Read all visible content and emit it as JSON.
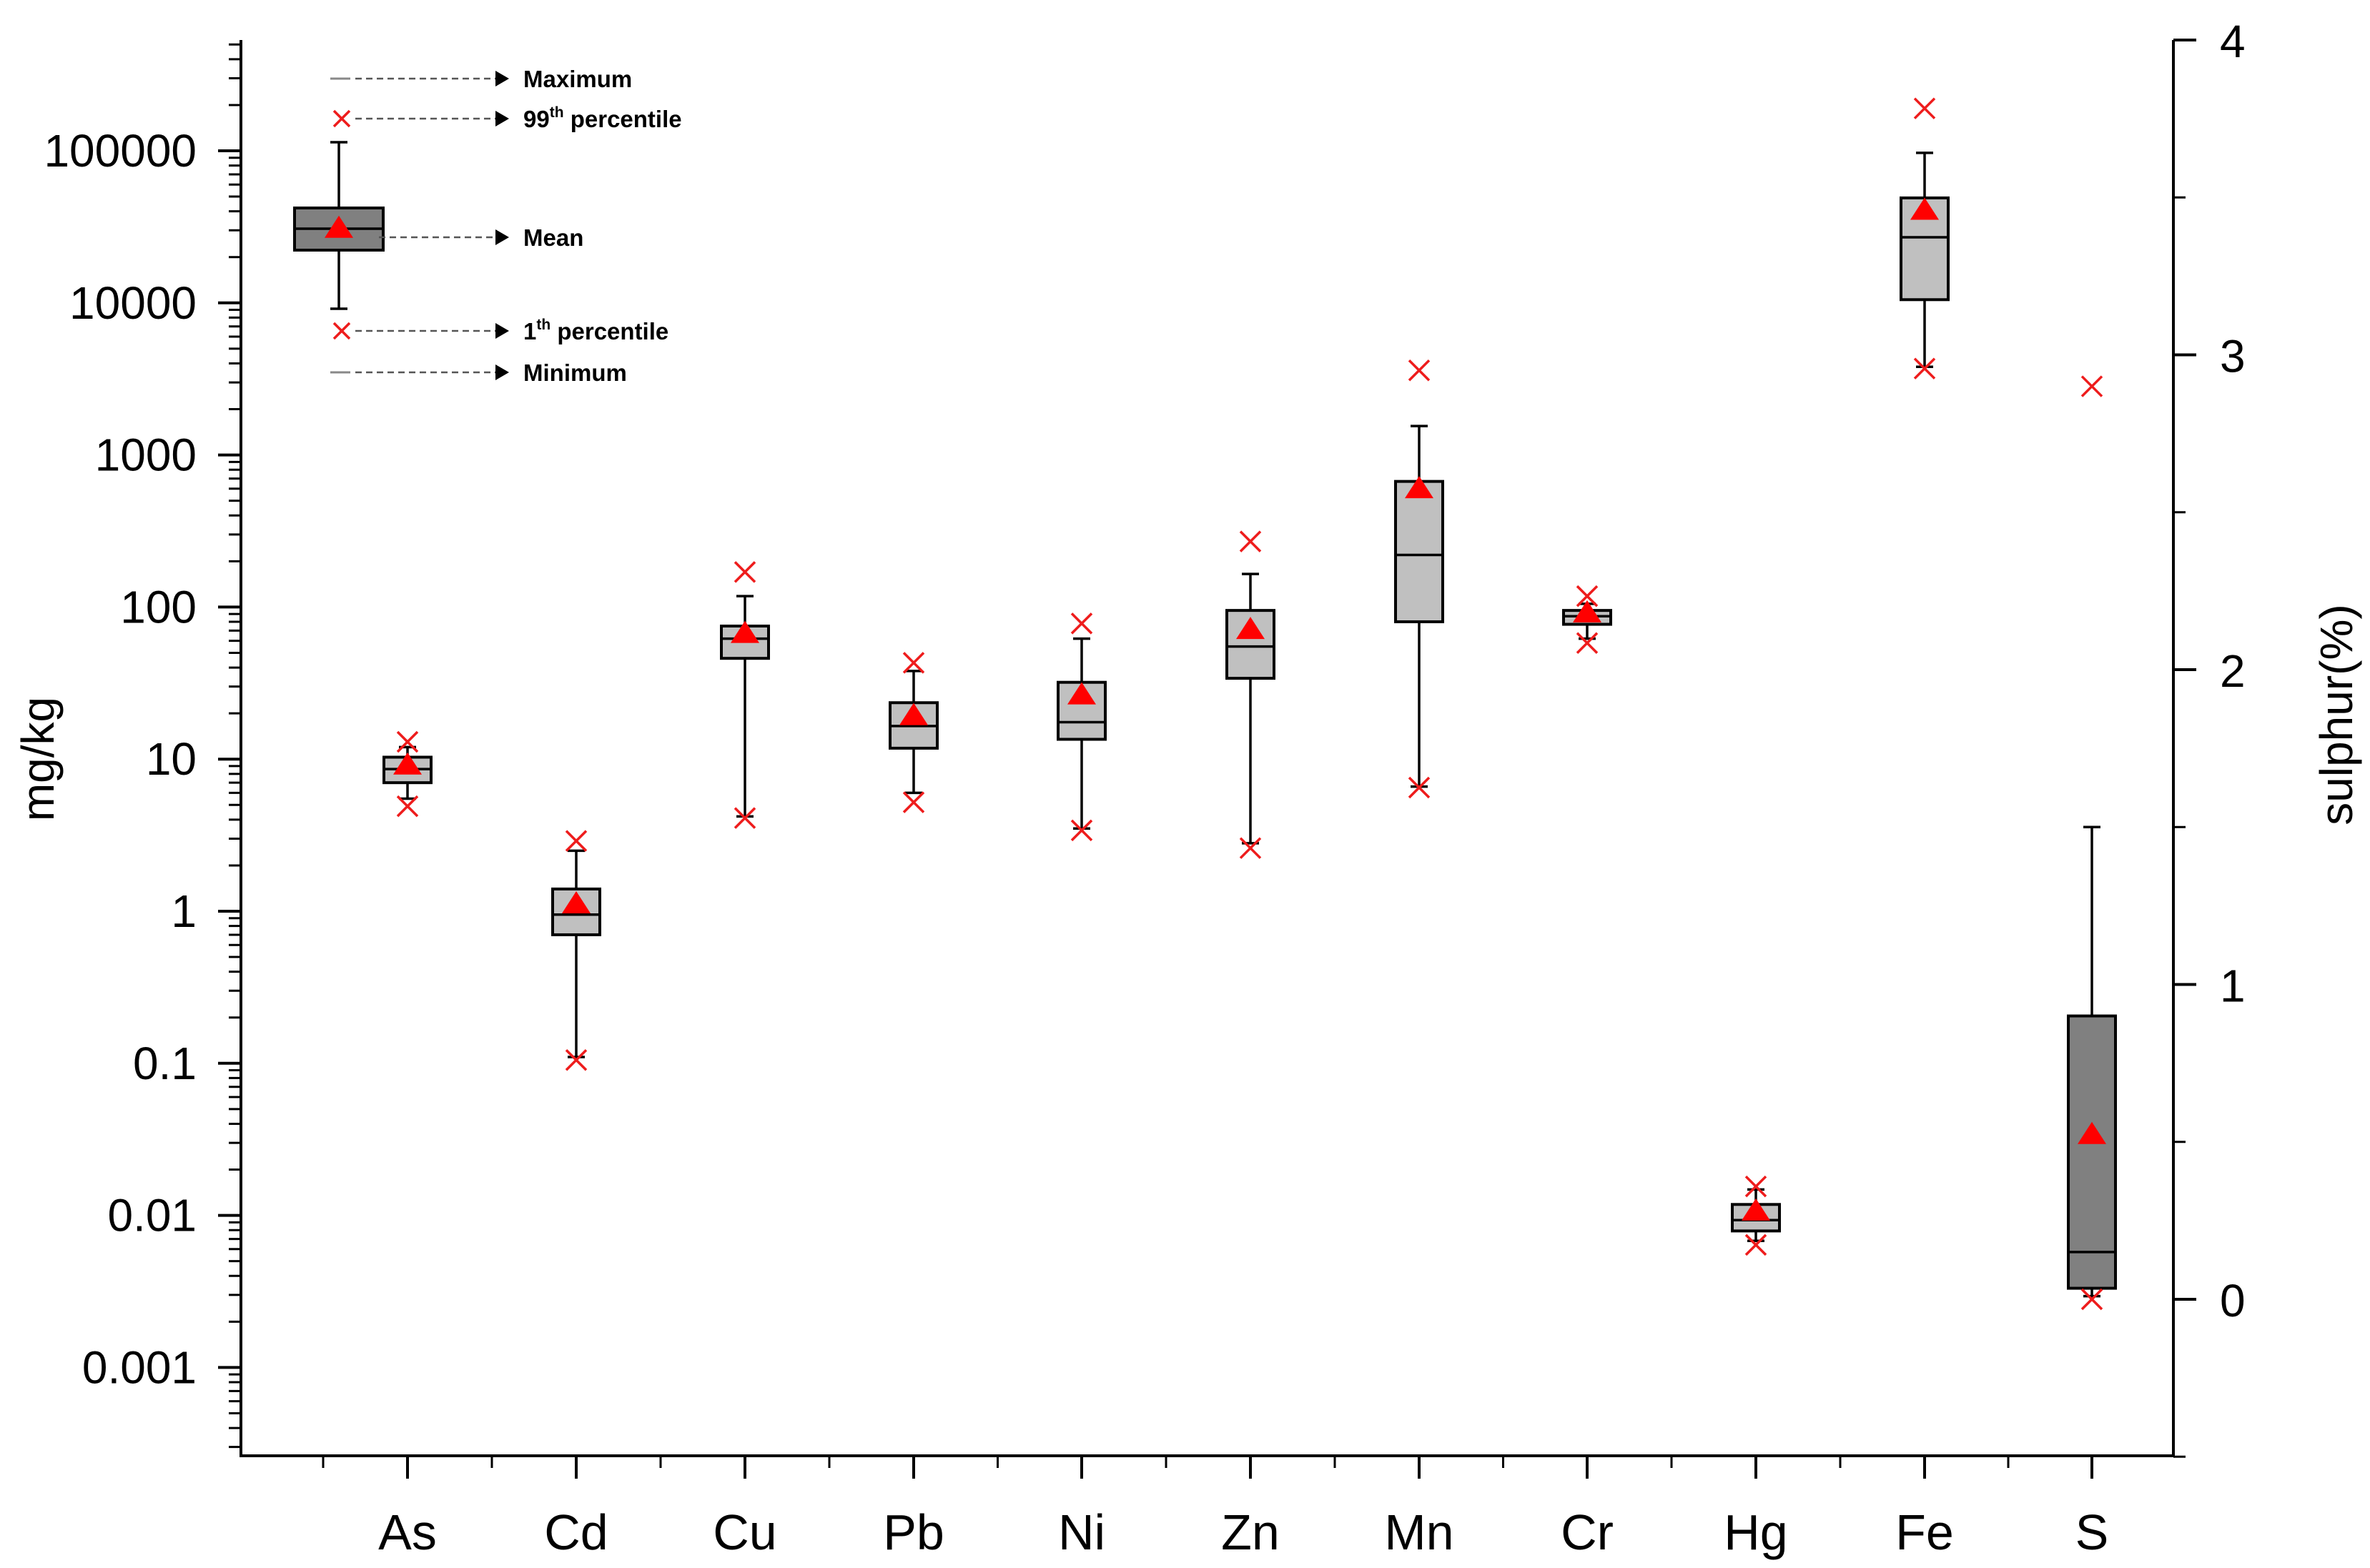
{
  "chart_data": {
    "type": "box",
    "title": "",
    "xlabel": "",
    "ylabel": "mg/kg",
    "y2label": "sulphur(%)",
    "yscale": "log",
    "ylim": [
      0.0002,
      500000
    ],
    "y2lim": [
      -0.5,
      4
    ],
    "yticks": [
      0.001,
      0.01,
      0.1,
      1,
      10,
      100,
      1000,
      10000,
      100000
    ],
    "ytick_labels": [
      "0.001",
      "0.01",
      "0.1",
      "1",
      "10",
      "100",
      "1000",
      "10000",
      "100000"
    ],
    "y2ticks": [
      0,
      1,
      2,
      3,
      4
    ],
    "y2tick_labels": [
      "0",
      "1",
      "2",
      "3",
      "4"
    ],
    "categories": [
      "As",
      "Cd",
      "Cu",
      "Pb",
      "Ni",
      "Zn",
      "Mn",
      "Cr",
      "Hg",
      "Fe",
      "S"
    ],
    "series": [
      {
        "name": "As",
        "axis": "left",
        "min": 5.5,
        "p1": 4.9,
        "q1": 7.0,
        "median": 8.6,
        "q3": 10.3,
        "max": 12.0,
        "p99": 13.0,
        "mean": 9.0
      },
      {
        "name": "Cd",
        "axis": "left",
        "min": 0.11,
        "p1": 0.105,
        "q1": 0.7,
        "median": 0.95,
        "q3": 1.4,
        "max": 2.5,
        "p99": 2.9,
        "mean": 1.1
      },
      {
        "name": "Cu",
        "axis": "left",
        "min": 4.2,
        "p1": 4.1,
        "q1": 46,
        "median": 62,
        "q3": 75,
        "max": 118,
        "p99": 170,
        "mean": 66
      },
      {
        "name": "Pb",
        "axis": "left",
        "min": 6.0,
        "p1": 5.2,
        "q1": 11.8,
        "median": 16.5,
        "q3": 23.5,
        "max": 38,
        "p99": 43,
        "mean": 19
      },
      {
        "name": "Ni",
        "axis": "left",
        "min": 3.5,
        "p1": 3.4,
        "q1": 13.5,
        "median": 17.5,
        "q3": 32,
        "max": 62,
        "p99": 78,
        "mean": 26
      },
      {
        "name": "Zn",
        "axis": "left",
        "min": 2.8,
        "p1": 2.6,
        "q1": 34,
        "median": 55,
        "q3": 95,
        "max": 165,
        "p99": 270,
        "mean": 70
      },
      {
        "name": "Mn",
        "axis": "left",
        "min": 6.6,
        "p1": 6.5,
        "q1": 80,
        "median": 220,
        "q3": 670,
        "max": 1550,
        "p99": 3600,
        "mean": 590
      },
      {
        "name": "Cr",
        "axis": "left",
        "min": 62,
        "p1": 58,
        "q1": 77,
        "median": 87,
        "q3": 95,
        "max": 105,
        "p99": 118,
        "mean": 90
      },
      {
        "name": "Hg",
        "axis": "left",
        "min": 0.0068,
        "p1": 0.0064,
        "q1": 0.0079,
        "median": 0.0093,
        "q3": 0.0118,
        "max": 0.0148,
        "p99": 0.0155,
        "mean": 0.0105
      },
      {
        "name": "Fe",
        "axis": "left",
        "min": 3800,
        "p1": 3700,
        "q1": 10500,
        "median": 27000,
        "q3": 49000,
        "max": 97000,
        "p99": 190000,
        "mean": 40000
      },
      {
        "name": "S",
        "axis": "right",
        "min": 0.01,
        "p1": 0.0,
        "q1": 0.035,
        "median": 0.15,
        "q3": 0.9,
        "max": 1.5,
        "p99": 2.9,
        "mean": 0.52
      }
    ],
    "legend": {
      "position": "top-left",
      "items": [
        {
          "key": "max",
          "label": "Maximum"
        },
        {
          "key": "p99",
          "label": "99",
          "sup": "th",
          "suffix": " percentile"
        },
        {
          "key": "mean",
          "label": "Mean"
        },
        {
          "key": "p1",
          "label": "1",
          "sup": "th",
          "suffix": " percentile"
        },
        {
          "key": "min",
          "label": "Minimum"
        }
      ],
      "example": {
        "min": 9000,
        "p1": 6500,
        "q1": 22000,
        "median": 30000,
        "q3": 42000,
        "max": 115000,
        "p99": 160000,
        "mean": 31000
      }
    },
    "colors": {
      "box": "#c0c0c0",
      "box_dark": "#808080",
      "mean": "#ff0000",
      "percentile": "#ee1c1c"
    },
    "grid": false
  }
}
